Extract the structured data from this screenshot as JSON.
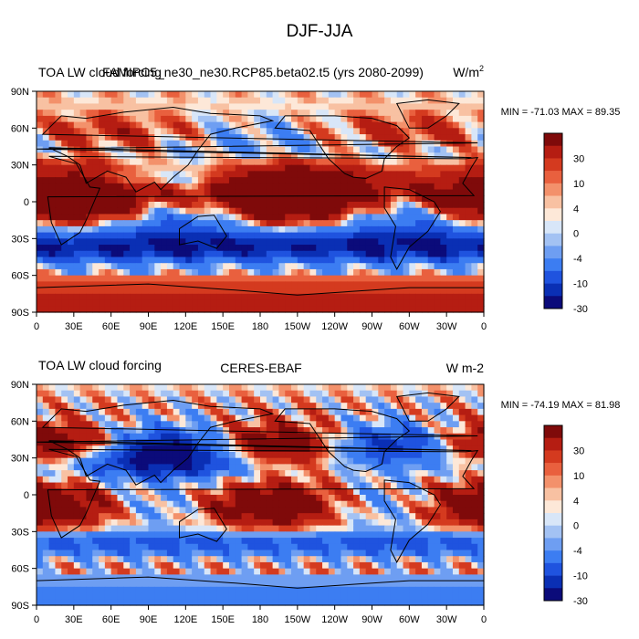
{
  "figure_title": "DJF-JJA",
  "colors": {
    "levels": [
      "#0b0b7a",
      "#0a2fb4",
      "#1f53df",
      "#3c7df2",
      "#6e9ef2",
      "#a3c2f3",
      "#d8e6f8",
      "#fde8d8",
      "#f8c1a2",
      "#f3916b",
      "#e9603e",
      "#d43a1f",
      "#b51d12",
      "#7f0a0a"
    ],
    "continent_outline": "#000000"
  },
  "colorbar": {
    "labels": [
      "30",
      "10",
      "4",
      "0",
      "-4",
      "-10",
      "-30"
    ]
  },
  "chart_data": [
    {
      "type": "heatmap",
      "name": "upper",
      "left_title": "TOA LW cloud forcing",
      "center_title": "FAMIPC5_ne30_ne30.RCP85.beta02.t5 (yrs 2080-2099)",
      "right_title": "W/m",
      "right_title_sup": "2",
      "stats": "MIN = -71.03 MAX =  89.35",
      "x_ticks": [
        "0",
        "30E",
        "60E",
        "90E",
        "120E",
        "150E",
        "180",
        "150W",
        "120W",
        "90W",
        "60W",
        "30W",
        "0"
      ],
      "y_ticks": [
        "90N",
        "60N",
        "30N",
        "0",
        "30S",
        "60S",
        "90S"
      ],
      "xlim": [
        0,
        360
      ],
      "ylim": [
        -90,
        90
      ],
      "contour_levels": [
        -40,
        -30,
        -20,
        -10,
        -6,
        -4,
        -2,
        0,
        2,
        4,
        6,
        10,
        20,
        30,
        40
      ],
      "colorbar_labels": [
        "30",
        "10",
        "4",
        "0",
        "-4",
        "-10",
        "-30"
      ]
    },
    {
      "type": "heatmap",
      "name": "lower",
      "left_title": "TOA LW cloud forcing",
      "center_title": "CERES-EBAF",
      "right_title": "W m-2",
      "right_title_sup": "",
      "stats": "MIN = -74.19 MAX =  81.98",
      "x_ticks": [
        "0",
        "30E",
        "60E",
        "90E",
        "120E",
        "150E",
        "180",
        "150W",
        "120W",
        "90W",
        "60W",
        "30W",
        "0"
      ],
      "y_ticks": [
        "90N",
        "60N",
        "30N",
        "0",
        "30S",
        "60S",
        "90S"
      ],
      "xlim": [
        0,
        360
      ],
      "ylim": [
        -90,
        90
      ],
      "contour_levels": [
        -40,
        -30,
        -20,
        -10,
        -6,
        -4,
        -2,
        0,
        2,
        4,
        6,
        10,
        20,
        30,
        40
      ],
      "colorbar_labels": [
        "30",
        "10",
        "4",
        "0",
        "-4",
        "-10",
        "-30"
      ]
    }
  ]
}
